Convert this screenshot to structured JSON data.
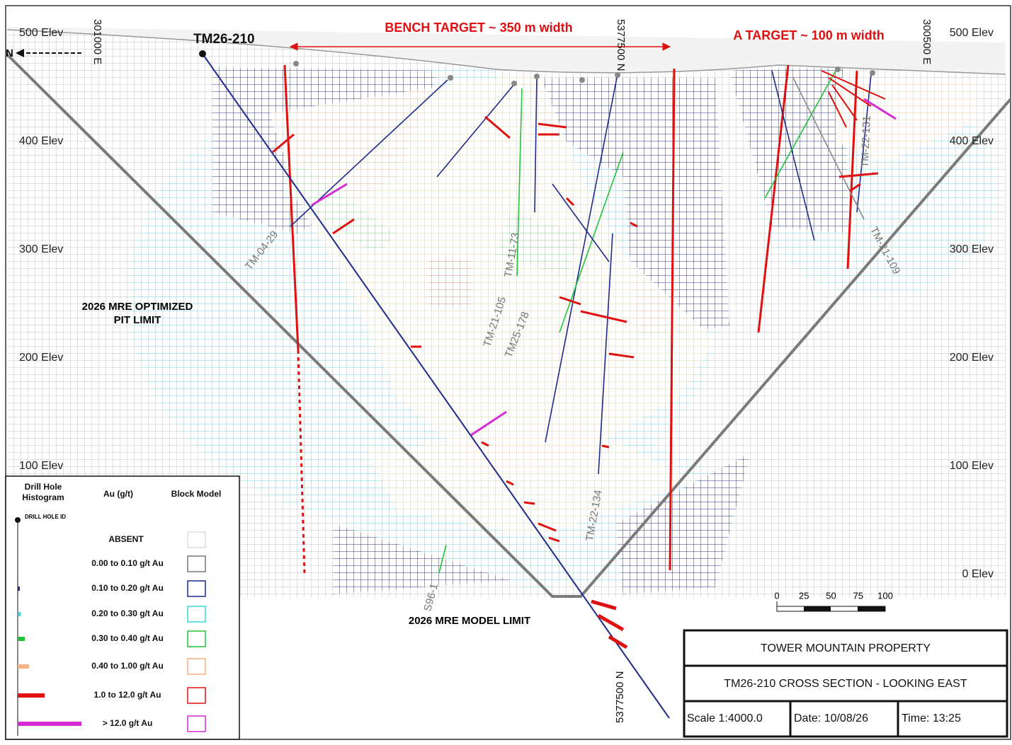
{
  "north_arrow": "N",
  "elevations_left": [
    "500 Elev",
    "400 Elev",
    "300 Elev",
    "200 Elev",
    "100 Elev"
  ],
  "elevations_right": [
    "500 Elev",
    "400 Elev",
    "300 Elev",
    "200 Elev",
    "100 Elev",
    "0 Elev"
  ],
  "eastings": [
    "301000 E",
    "300500 E"
  ],
  "northings": [
    "5377500 N",
    "5377500 N"
  ],
  "collar_label": "TM26-210",
  "targets": [
    "BENCH TARGET ~ 350 m width",
    "A TARGET ~ 100 m width"
  ],
  "pit_limit": [
    "2026 MRE OPTIMIZED",
    "PIT LIMIT"
  ],
  "model_limit": "2026 MRE MODEL LIMIT",
  "drill_holes": [
    "TM-04-29",
    "TM-11-73",
    "TM-21-105",
    "TM25-178",
    "TM-22-134",
    "S96-1",
    "TM-22-131",
    "TM-21-109"
  ],
  "legend": {
    "headers": [
      "Drill Hole",
      "Histogram",
      "Au (g/t)",
      "Block Model"
    ],
    "drill_hole_id": "DRILL HOLE ID",
    "rows": [
      {
        "label": "ABSENT",
        "color": "#cccccc"
      },
      {
        "label": "0.00 to 0.10 g/t Au",
        "color": "#777777"
      },
      {
        "label": "0.10 to 0.20 g/t Au",
        "color": "#1f2a8c"
      },
      {
        "label": "0.20 to 0.30 g/t Au",
        "color": "#39d7d7"
      },
      {
        "label": "0.30 to 0.40 g/t Au",
        "color": "#22c43a"
      },
      {
        "label": "0.40 to 1.00 g/t Au",
        "color": "#f4b183"
      },
      {
        "label": "1.0 to 12.0 g/t Au",
        "color": "#e01010"
      },
      {
        "label": "> 12.0 g/t Au",
        "color": "#d62ad6"
      }
    ]
  },
  "scale_bar": [
    0,
    25,
    50,
    75,
    100
  ],
  "title_block": {
    "property": "TOWER MOUNTAIN PROPERTY",
    "section": "TM26-210 CROSS SECTION - LOOKING EAST",
    "scale": "Scale 1:4000.0",
    "date": "Date: 10/08/26",
    "time": "Time: 13:25"
  }
}
